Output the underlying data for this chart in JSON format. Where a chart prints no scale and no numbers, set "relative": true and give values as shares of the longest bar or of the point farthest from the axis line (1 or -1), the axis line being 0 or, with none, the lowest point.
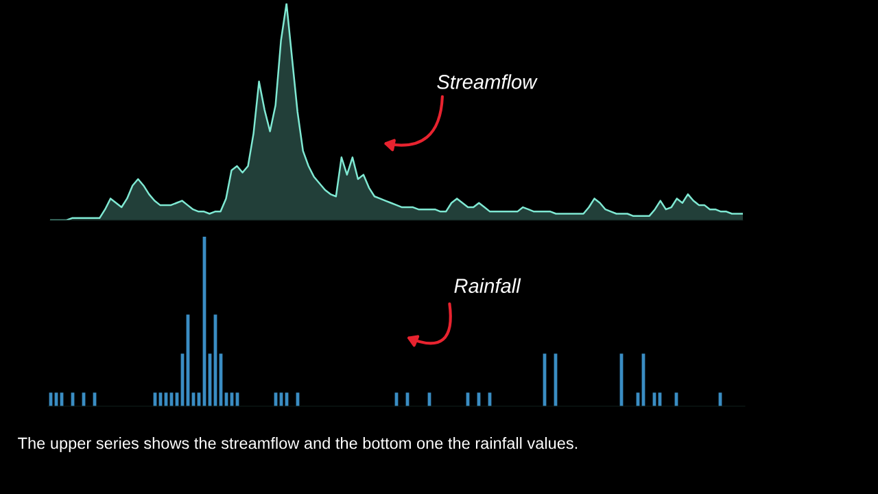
{
  "chart_data": [
    {
      "type": "area",
      "relative": true,
      "color": "#7fe9d3",
      "categories": [
        null,
        null,
        null,
        null,
        null,
        null,
        null,
        null,
        null,
        null,
        null,
        null,
        null,
        null,
        null,
        null,
        null,
        null,
        null,
        null,
        null,
        null,
        null,
        null,
        null,
        null,
        null,
        null,
        null,
        null,
        null,
        null,
        null,
        null,
        null,
        null,
        null,
        null,
        null,
        null,
        null,
        null,
        null,
        null,
        null,
        null,
        null,
        null,
        null,
        null,
        null,
        null,
        null,
        null,
        null,
        null,
        null,
        null,
        null,
        null,
        null,
        null,
        null,
        null,
        null,
        null,
        null,
        null,
        null,
        null,
        null,
        null,
        null,
        null,
        null,
        null,
        null,
        null,
        null,
        null,
        null,
        null,
        null,
        null,
        null,
        null,
        null,
        null,
        null,
        null,
        null,
        null,
        null,
        null,
        null,
        null,
        null,
        null,
        null,
        null,
        null,
        null,
        null,
        null,
        null,
        null,
        null,
        null,
        null,
        null,
        null,
        null,
        null,
        null,
        null,
        null,
        null,
        null,
        null,
        null,
        null,
        null,
        null,
        null,
        null,
        null,
        null
      ],
      "values": [
        0,
        0,
        0,
        0,
        0.01,
        0.01,
        0.01,
        0.01,
        0.01,
        0.01,
        0.05,
        0.1,
        0.08,
        0.06,
        0.1,
        0.16,
        0.19,
        0.16,
        0.12,
        0.09,
        0.07,
        0.07,
        0.07,
        0.08,
        0.09,
        0.07,
        0.05,
        0.04,
        0.04,
        0.03,
        0.04,
        0.04,
        0.1,
        0.23,
        0.25,
        0.22,
        0.25,
        0.4,
        0.64,
        0.51,
        0.41,
        0.53,
        0.83,
        1,
        0.75,
        0.5,
        0.32,
        0.25,
        0.2,
        0.17,
        0.14,
        0.12,
        0.11,
        0.29,
        0.21,
        0.29,
        0.19,
        0.21,
        0.15,
        0.11,
        0.1,
        0.09,
        0.08,
        0.07,
        0.06,
        0.06,
        0.06,
        0.05,
        0.05,
        0.05,
        0.05,
        0.04,
        0.04,
        0.08,
        0.1,
        0.08,
        0.06,
        0.06,
        0.08,
        0.06,
        0.04,
        0.04,
        0.04,
        0.04,
        0.04,
        0.04,
        0.06,
        0.05,
        0.04,
        0.04,
        0.04,
        0.04,
        0.03,
        0.03,
        0.03,
        0.03,
        0.03,
        0.03,
        0.06,
        0.1,
        0.08,
        0.05,
        0.04,
        0.03,
        0.03,
        0.03,
        0.02,
        0.02,
        0.02,
        0.02,
        0.05,
        0.09,
        0.05,
        0.06,
        0.1,
        0.08,
        0.12,
        0.09,
        0.07,
        0.07,
        0.05,
        0.05,
        0.04,
        0.04,
        0.03,
        0.03,
        0.03
      ],
      "annotations": [
        "Streamflow"
      ]
    },
    {
      "type": "bar",
      "relative": true,
      "color": "#3a8dc3",
      "categories": [
        null,
        null,
        null,
        null,
        null,
        null,
        null,
        null,
        null,
        null,
        null,
        null,
        null,
        null,
        null,
        null,
        null,
        null,
        null,
        null,
        null,
        null,
        null,
        null,
        null,
        null,
        null,
        null,
        null,
        null,
        null,
        null,
        null,
        null,
        null,
        null,
        null,
        null,
        null,
        null,
        null,
        null,
        null,
        null,
        null,
        null,
        null,
        null,
        null,
        null,
        null,
        null,
        null,
        null,
        null,
        null,
        null,
        null,
        null,
        null,
        null,
        null,
        null,
        null,
        null,
        null,
        null,
        null,
        null,
        null,
        null,
        null,
        null,
        null,
        null,
        null,
        null,
        null,
        null,
        null,
        null,
        null,
        null,
        null,
        null,
        null,
        null,
        null,
        null,
        null,
        null,
        null,
        null,
        null,
        null,
        null,
        null,
        null,
        null,
        null,
        null,
        null,
        null,
        null,
        null,
        null,
        null,
        null,
        null,
        null,
        null,
        null,
        null,
        null,
        null,
        null,
        null,
        null,
        null,
        null,
        null,
        null,
        null,
        null,
        null,
        null,
        null
      ],
      "values": [
        0.08,
        0.08,
        0.08,
        0,
        0.08,
        0,
        0.08,
        0,
        0.08,
        0,
        0,
        0,
        0,
        0,
        0,
        0,
        0,
        0,
        0,
        0.08,
        0.08,
        0.08,
        0.08,
        0.08,
        0.31,
        0.54,
        0.08,
        0.08,
        1,
        0.31,
        0.54,
        0.31,
        0.08,
        0.08,
        0.08,
        0,
        0,
        0,
        0,
        0,
        0,
        0.08,
        0.08,
        0.08,
        0,
        0.08,
        0,
        0,
        0,
        0,
        0,
        0,
        0,
        0,
        0,
        0,
        0,
        0,
        0,
        0,
        0,
        0,
        0,
        0.08,
        0,
        0.08,
        0,
        0,
        0,
        0.08,
        0,
        0,
        0,
        0,
        0,
        0,
        0.08,
        0,
        0.08,
        0,
        0.08,
        0,
        0,
        0,
        0,
        0,
        0,
        0,
        0,
        0,
        0.31,
        0,
        0.31,
        0,
        0,
        0,
        0,
        0,
        0,
        0,
        0,
        0,
        0,
        0,
        0.31,
        0,
        0,
        0.08,
        0.31,
        0,
        0.08,
        0.08,
        0,
        0,
        0.08,
        0,
        0,
        0,
        0,
        0,
        0,
        0,
        0.08,
        0,
        0,
        0,
        0
      ],
      "annotations": [
        "Rainfall",
        "The upper series shows the streamflow and the bottom one the rainfall values."
      ]
    }
  ]
}
